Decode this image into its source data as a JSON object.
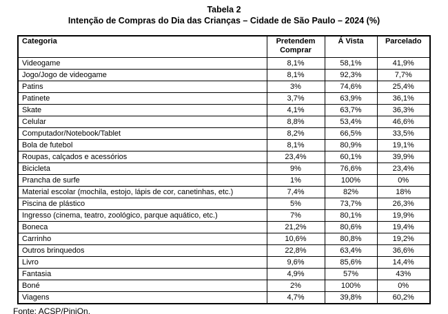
{
  "title": "Tabela 2",
  "subtitle": "Intenção de Compras do Dia das Crianças – Cidade de São Paulo – 2024 (%)",
  "source": "Fonte: ACSP/PiniOn.",
  "table": {
    "columns": [
      "Categoria",
      "Pretendem Comprar",
      "Á Vista",
      "Parcelado"
    ],
    "rows": [
      [
        "Videogame",
        "8,1%",
        "58,1%",
        "41,9%"
      ],
      [
        "Jogo/Jogo de videogame",
        "8,1%",
        "92,3%",
        "7,7%"
      ],
      [
        "Patins",
        "3%",
        "74,6%",
        "25,4%"
      ],
      [
        "Patinete",
        "3,7%",
        "63,9%",
        "36,1%"
      ],
      [
        "Skate",
        "4,1%",
        "63,7%",
        "36,3%"
      ],
      [
        "Celular",
        "8,8%",
        "53,4%",
        "46,6%"
      ],
      [
        "Computador/Notebook/Tablet",
        "8,2%",
        "66,5%",
        "33,5%"
      ],
      [
        "Bola de futebol",
        "8,1%",
        "80,9%",
        "19,1%"
      ],
      [
        "Roupas, calçados e acessórios",
        "23,4%",
        "60,1%",
        "39,9%"
      ],
      [
        "Bicicleta",
        "9%",
        "76,6%",
        "23,4%"
      ],
      [
        "Prancha de surfe",
        "1%",
        "100%",
        "0%"
      ],
      [
        "Material escolar (mochila, estojo, lápis de cor, canetinhas, etc.)",
        "7,4%",
        "82%",
        "18%"
      ],
      [
        "Piscina de plástico",
        "5%",
        "73,7%",
        "26,3%"
      ],
      [
        "Ingresso (cinema, teatro, zoológico, parque aquático, etc.)",
        "7%",
        "80,1%",
        "19,9%"
      ],
      [
        "Boneca",
        "21,2%",
        "80,6%",
        "19,4%"
      ],
      [
        "Carrinho",
        "10,6%",
        "80,8%",
        "19,2%"
      ],
      [
        "Outros brinquedos",
        "22,8%",
        "63,4%",
        "36,6%"
      ],
      [
        "Livro",
        "9,6%",
        "85,6%",
        "14,4%"
      ],
      [
        "Fantasia",
        "4,9%",
        "57%",
        "43%"
      ],
      [
        "Boné",
        "2%",
        "100%",
        "0%"
      ],
      [
        "Viagens",
        "4,7%",
        "39,8%",
        "60,2%"
      ]
    ]
  }
}
